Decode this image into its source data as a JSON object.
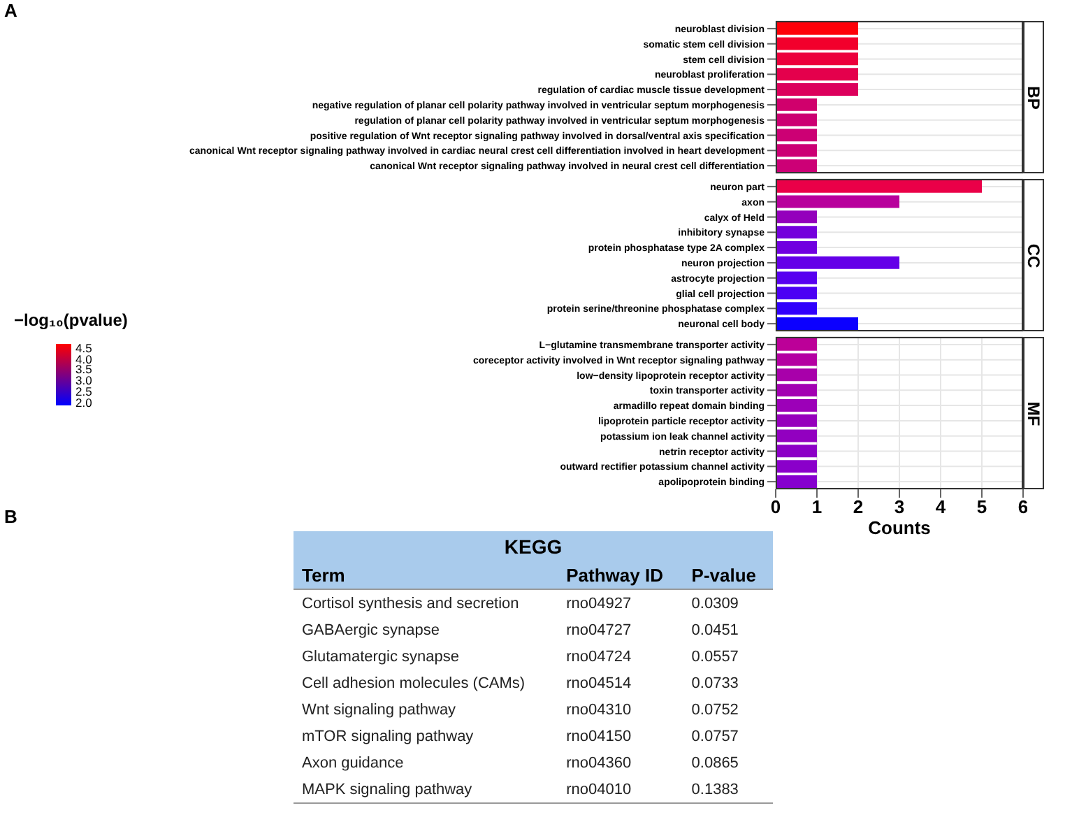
{
  "chart_data": [
    {
      "type": "bar",
      "orientation": "horizontal",
      "title": "BP",
      "annotations": [
        "A"
      ],
      "categories": [
        "neuroblast division",
        "somatic stem cell division",
        "stem cell division",
        "neuroblast proliferation",
        "regulation of cardiac muscle tissue development",
        "negative regulation of planar cell polarity pathway involved in ventricular septum morphogenesis",
        "regulation of planar cell polarity pathway involved in ventricular septum morphogenesis",
        "positive regulation of Wnt receptor signaling pathway involved in dorsal/ventral axis specification",
        "canonical Wnt receptor signaling pathway involved in cardiac neural crest cell differentiation involved in heart development",
        "canonical Wnt receptor signaling pathway involved in neural crest cell differentiation"
      ],
      "values": [
        2,
        2,
        2,
        2,
        2,
        1,
        1,
        1,
        1,
        1
      ],
      "colors": [
        "#fe0008",
        "#f2002c",
        "#ec003c",
        "#e4004c",
        "#dc005c",
        "#d0006c",
        "#cc0072",
        "#cc0074",
        "#cc0074",
        "#cc0076"
      ],
      "xlim": [
        0,
        6
      ],
      "xticks": [
        0,
        1,
        2,
        3,
        4,
        5,
        6
      ],
      "grid": true,
      "tick_labels": "y",
      "clabel": "−log₁₀(pvalue)",
      "clim": [
        1.9,
        4.7
      ],
      "cticks": [
        {
          "value": 2,
          "label": "2.0"
        },
        {
          "value": 2.5,
          "label": "2.5"
        },
        {
          "value": 3,
          "label": "3.0"
        },
        {
          "value": 3.5,
          "label": "3.5"
        },
        {
          "value": 4,
          "label": "4.0"
        },
        {
          "value": 4.5,
          "label": "4.5"
        }
      ]
    },
    {
      "type": "bar",
      "orientation": "horizontal",
      "title": "CC",
      "categories": [
        "neuron part",
        "axon",
        "calyx of Held",
        "inhibitory synapse",
        "protein phosphatase type 2A complex",
        "neuron projection",
        "astrocyte projection",
        "glial cell projection",
        "protein serine/threonine phosphatase complex",
        "neuronal cell body"
      ],
      "values": [
        5,
        3,
        1,
        1,
        1,
        3,
        1,
        1,
        1,
        2
      ],
      "colors": [
        "#ea0048",
        "#b8009c",
        "#9400bc",
        "#7400dc",
        "#7000e0",
        "#6400e8",
        "#5800f0",
        "#4c00f4",
        "#3000fc",
        "#0c00ff"
      ],
      "xlim": [
        0,
        6
      ],
      "xticks": [
        0,
        1,
        2,
        3,
        4,
        5,
        6
      ],
      "grid": true,
      "tick_labels": "y"
    },
    {
      "type": "bar",
      "orientation": "horizontal",
      "title": "MF",
      "xlabel": "Counts",
      "categories": [
        "L−glutamine transmembrane transporter activity",
        "coreceptor activity involved in Wnt receptor signaling pathway",
        "low−density lipoprotein receptor activity",
        "toxin transporter activity",
        "armadillo repeat domain binding",
        "lipoprotein particle receptor activity",
        "potassium ion leak channel activity",
        "netrin receptor activity",
        "outward rectifier potassium channel activity",
        "apolipoprotein binding"
      ],
      "values": [
        1,
        1,
        1,
        1,
        1,
        1,
        1,
        1,
        1,
        1
      ],
      "colors": [
        "#bc0098",
        "#b400a2",
        "#a800aa",
        "#a200b2",
        "#9c00b8",
        "#9600bc",
        "#9200c0",
        "#8c00c6",
        "#8a00ca",
        "#8600ce"
      ],
      "xlim": [
        0,
        6
      ],
      "xticks": [
        0,
        1,
        2,
        3,
        4,
        5,
        6
      ],
      "grid": true
    },
    {
      "type": "other",
      "title": "KEGG",
      "annotations": [
        "B",
        "Term",
        "Pathway ID",
        "P-value",
        "Cortisol synthesis and secretion",
        "rno04927",
        "0.0309",
        "GABAergic synapse",
        "rno04727",
        "0.0451",
        "Glutamatergic synapse",
        "rno04724",
        "0.0557",
        "Cell adhesion molecules (CAMs)",
        "rno04514",
        "0.0733",
        "Wnt signaling pathway",
        "rno04310",
        "0.0752",
        "mTOR signaling pathway",
        "rno04150",
        "0.0757",
        "Axon guidance",
        "rno04360",
        "0.0865",
        "MAPK signaling pathway",
        "rno04010",
        "0.1383"
      ]
    }
  ]
}
